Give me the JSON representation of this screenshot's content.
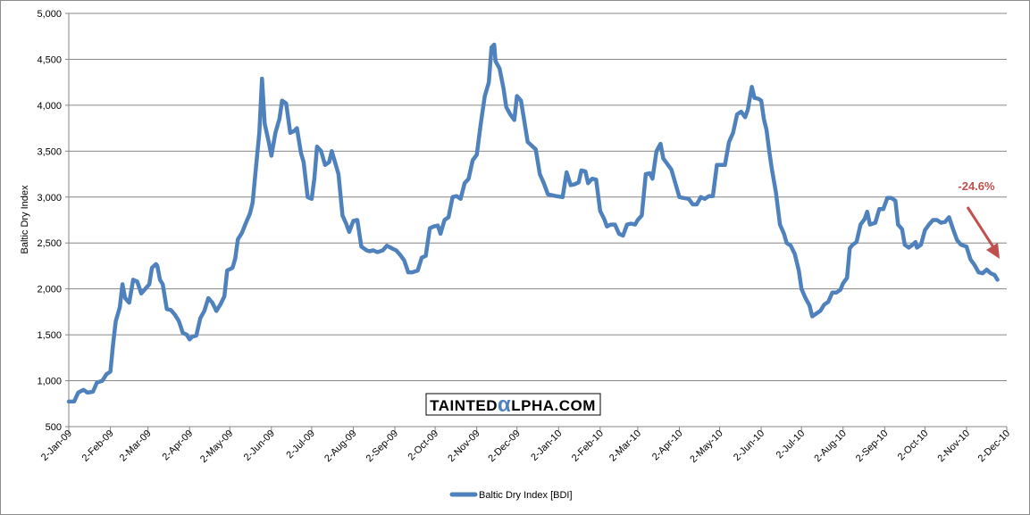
{
  "chart_data": {
    "type": "line",
    "title": "",
    "xlabel": "",
    "ylabel": "Baltic Dry Index",
    "ylim": [
      500,
      5000
    ],
    "yticks": [
      500,
      1000,
      1500,
      2000,
      2500,
      3000,
      3500,
      4000,
      4500,
      5000
    ],
    "ytick_labels": [
      "500",
      "1,000",
      "1,500",
      "2,000",
      "2,500",
      "3,000",
      "3,500",
      "4,000",
      "4,500",
      "5,000"
    ],
    "xtick_labels": [
      "2-Jan-09",
      "2-Feb-09",
      "2-Mar-09",
      "2-Apr-09",
      "2-May-09",
      "2-Jun-09",
      "2-Jul-09",
      "2-Aug-09",
      "2-Sep-09",
      "2-Oct-09",
      "2-Nov-09",
      "2-Dec-09",
      "2-Jan-10",
      "2-Feb-10",
      "2-Mar-10",
      "2-Apr-10",
      "2-May-10",
      "2-Jun-10",
      "2-Jul-10",
      "2-Aug-10",
      "2-Sep-10",
      "2-Oct-10",
      "2-Nov-10",
      "2-Dec-10"
    ],
    "grid": "horizontal",
    "legend": "bottom",
    "series": [
      {
        "name": "Baltic Dry Index [BDI]",
        "color": "#4f81bd",
        "points": [
          [
            "2-Jan-09",
            773
          ],
          [
            "6-Jan-09",
            774
          ],
          [
            "9-Jan-09",
            870
          ],
          [
            "13-Jan-09",
            900
          ],
          [
            "16-Jan-09",
            870
          ],
          [
            "20-Jan-09",
            880
          ],
          [
            "23-Jan-09",
            980
          ],
          [
            "27-Jan-09",
            1000
          ],
          [
            "30-Jan-09",
            1070
          ],
          [
            "2-Feb-09",
            1100
          ],
          [
            "4-Feb-09",
            1400
          ],
          [
            "6-Feb-09",
            1650
          ],
          [
            "9-Feb-09",
            1800
          ],
          [
            "11-Feb-09",
            2050
          ],
          [
            "13-Feb-09",
            1900
          ],
          [
            "16-Feb-09",
            1850
          ],
          [
            "19-Feb-09",
            2100
          ],
          [
            "22-Feb-09",
            2080
          ],
          [
            "25-Feb-09",
            1950
          ],
          [
            "28-Feb-09",
            2000
          ],
          [
            "3-Mar-09",
            2050
          ],
          [
            "5-Mar-09",
            2230
          ],
          [
            "8-Mar-09",
            2270
          ],
          [
            "9-Mar-09",
            2250
          ],
          [
            "11-Mar-09",
            2100
          ],
          [
            "13-Mar-09",
            2050
          ],
          [
            "16-Mar-09",
            1780
          ],
          [
            "19-Mar-09",
            1770
          ],
          [
            "22-Mar-09",
            1720
          ],
          [
            "25-Mar-09",
            1650
          ],
          [
            "28-Mar-09",
            1520
          ],
          [
            "31-Mar-09",
            1500
          ],
          [
            "2-Apr-09",
            1450
          ],
          [
            "4-Apr-09",
            1480
          ],
          [
            "7-Apr-09",
            1490
          ],
          [
            "10-Apr-09",
            1680
          ],
          [
            "13-Apr-09",
            1760
          ],
          [
            "16-Apr-09",
            1900
          ],
          [
            "19-Apr-09",
            1850
          ],
          [
            "22-Apr-09",
            1760
          ],
          [
            "25-Apr-09",
            1830
          ],
          [
            "28-Apr-09",
            1920
          ],
          [
            "30-Apr-09",
            2200
          ],
          [
            "4-May-09",
            2230
          ],
          [
            "6-May-09",
            2330
          ],
          [
            "8-May-09",
            2540
          ],
          [
            "11-May-09",
            2610
          ],
          [
            "14-May-09",
            2720
          ],
          [
            "17-May-09",
            2820
          ],
          [
            "19-May-09",
            2940
          ],
          [
            "22-May-09",
            3400
          ],
          [
            "24-May-09",
            3700
          ],
          [
            "26-May-09",
            4290
          ],
          [
            "28-May-09",
            3800
          ],
          [
            "31-May-09",
            3600
          ],
          [
            "2-Jun-09",
            3450
          ],
          [
            "5-Jun-09",
            3700
          ],
          [
            "8-Jun-09",
            3850
          ],
          [
            "10-Jun-09",
            4050
          ],
          [
            "13-Jun-09",
            4020
          ],
          [
            "16-Jun-09",
            3700
          ],
          [
            "19-Jun-09",
            3720
          ],
          [
            "21-Jun-09",
            3750
          ],
          [
            "24-Jun-09",
            3480
          ],
          [
            "26-Jun-09",
            3380
          ],
          [
            "29-Jun-09",
            3000
          ],
          [
            "2-Jul-09",
            2980
          ],
          [
            "4-Jul-09",
            3200
          ],
          [
            "6-Jul-09",
            3550
          ],
          [
            "9-Jul-09",
            3500
          ],
          [
            "12-Jul-09",
            3350
          ],
          [
            "15-Jul-09",
            3380
          ],
          [
            "17-Jul-09",
            3500
          ],
          [
            "20-Jul-09",
            3350
          ],
          [
            "22-Jul-09",
            3250
          ],
          [
            "25-Jul-09",
            2800
          ],
          [
            "28-Jul-09",
            2700
          ],
          [
            "30-Jul-09",
            2620
          ],
          [
            "2-Aug-09",
            2740
          ],
          [
            "5-Aug-09",
            2750
          ],
          [
            "8-Aug-09",
            2460
          ],
          [
            "12-Aug-09",
            2420
          ],
          [
            "14-Aug-09",
            2410
          ],
          [
            "17-Aug-09",
            2420
          ],
          [
            "20-Aug-09",
            2400
          ],
          [
            "24-Aug-09",
            2420
          ],
          [
            "27-Aug-09",
            2470
          ],
          [
            "31-Aug-09",
            2440
          ],
          [
            "3-Sep-09",
            2420
          ],
          [
            "6-Sep-09",
            2370
          ],
          [
            "9-Sep-09",
            2310
          ],
          [
            "12-Sep-09",
            2180
          ],
          [
            "15-Sep-09",
            2180
          ],
          [
            "19-Sep-09",
            2200
          ],
          [
            "22-Sep-09",
            2340
          ],
          [
            "25-Sep-09",
            2360
          ],
          [
            "28-Sep-09",
            2660
          ],
          [
            "1-Oct-09",
            2680
          ],
          [
            "4-Oct-09",
            2690
          ],
          [
            "6-Oct-09",
            2600
          ],
          [
            "9-Oct-09",
            2750
          ],
          [
            "12-Oct-09",
            2780
          ],
          [
            "15-Oct-09",
            3000
          ],
          [
            "18-Oct-09",
            3010
          ],
          [
            "21-Oct-09",
            2980
          ],
          [
            "24-Oct-09",
            3150
          ],
          [
            "27-Oct-09",
            3200
          ],
          [
            "30-Oct-09",
            3400
          ],
          [
            "2-Nov-09",
            3460
          ],
          [
            "5-Nov-09",
            3800
          ],
          [
            "8-Nov-09",
            4100
          ],
          [
            "11-Nov-09",
            4250
          ],
          [
            "13-Nov-09",
            4630
          ],
          [
            "15-Nov-09",
            4660
          ],
          [
            "16-Nov-09",
            4480
          ],
          [
            "19-Nov-09",
            4400
          ],
          [
            "22-Nov-09",
            4180
          ],
          [
            "24-Nov-09",
            3980
          ],
          [
            "27-Nov-09",
            3900
          ],
          [
            "30-Nov-09",
            3840
          ],
          [
            "2-Dec-09",
            4100
          ],
          [
            "5-Dec-09",
            4050
          ],
          [
            "8-Dec-09",
            3780
          ],
          [
            "10-Dec-09",
            3600
          ],
          [
            "13-Dec-09",
            3560
          ],
          [
            "16-Dec-09",
            3520
          ],
          [
            "19-Dec-09",
            3250
          ],
          [
            "22-Dec-09",
            3150
          ],
          [
            "25-Dec-09",
            3030
          ],
          [
            "31-Dec-09",
            3010
          ],
          [
            "5-Jan-10",
            3000
          ],
          [
            "8-Jan-10",
            3270
          ],
          [
            "11-Jan-10",
            3130
          ],
          [
            "14-Jan-10",
            3140
          ],
          [
            "17-Jan-10",
            3160
          ],
          [
            "19-Jan-10",
            3290
          ],
          [
            "22-Jan-10",
            3280
          ],
          [
            "24-Jan-10",
            3150
          ],
          [
            "27-Jan-10",
            3200
          ],
          [
            "30-Jan-10",
            3190
          ],
          [
            "2-Feb-10",
            2850
          ],
          [
            "5-Feb-10",
            2760
          ],
          [
            "7-Feb-10",
            2680
          ],
          [
            "10-Feb-10",
            2700
          ],
          [
            "13-Feb-10",
            2700
          ],
          [
            "16-Feb-10",
            2600
          ],
          [
            "19-Feb-10",
            2580
          ],
          [
            "22-Feb-10",
            2700
          ],
          [
            "25-Feb-10",
            2710
          ],
          [
            "28-Feb-10",
            2700
          ],
          [
            "2-Mar-10",
            2750
          ],
          [
            "5-Mar-10",
            2800
          ],
          [
            "8-Mar-10",
            3250
          ],
          [
            "11-Mar-10",
            3260
          ],
          [
            "13-Mar-10",
            3200
          ],
          [
            "16-Mar-10",
            3500
          ],
          [
            "19-Mar-10",
            3580
          ],
          [
            "21-Mar-10",
            3420
          ],
          [
            "24-Mar-10",
            3360
          ],
          [
            "27-Mar-10",
            3300
          ],
          [
            "30-Mar-10",
            3150
          ],
          [
            "2-Apr-10",
            3000
          ],
          [
            "5-Apr-10",
            2990
          ],
          [
            "9-Apr-10",
            2980
          ],
          [
            "12-Apr-10",
            2920
          ],
          [
            "15-Apr-10",
            2920
          ],
          [
            "18-Apr-10",
            3000
          ],
          [
            "21-Apr-10",
            2980
          ],
          [
            "24-Apr-10",
            3010
          ],
          [
            "27-Apr-10",
            3010
          ],
          [
            "30-Apr-10",
            3350
          ],
          [
            "3-May-10",
            3350
          ],
          [
            "6-May-10",
            3350
          ],
          [
            "9-May-10",
            3600
          ],
          [
            "12-May-10",
            3700
          ],
          [
            "15-May-10",
            3900
          ],
          [
            "18-May-10",
            3930
          ],
          [
            "21-May-10",
            3870
          ],
          [
            "23-May-10",
            3950
          ],
          [
            "26-May-10",
            4200
          ],
          [
            "28-May-10",
            4080
          ],
          [
            "31-May-10",
            4070
          ],
          [
            "2-Jun-10",
            4050
          ],
          [
            "4-Jun-10",
            3850
          ],
          [
            "6-Jun-10",
            3730
          ],
          [
            "8-Jun-10",
            3500
          ],
          [
            "10-Jun-10",
            3300
          ],
          [
            "13-Jun-10",
            3050
          ],
          [
            "16-Jun-10",
            2700
          ],
          [
            "19-Jun-10",
            2600
          ],
          [
            "21-Jun-10",
            2500
          ],
          [
            "24-Jun-10",
            2470
          ],
          [
            "27-Jun-10",
            2380
          ],
          [
            "30-Jun-10",
            2200
          ],
          [
            "2-Jul-10",
            2000
          ],
          [
            "5-Jul-10",
            1900
          ],
          [
            "8-Jul-10",
            1820
          ],
          [
            "10-Jul-10",
            1700
          ],
          [
            "13-Jul-10",
            1730
          ],
          [
            "16-Jul-10",
            1760
          ],
          [
            "19-Jul-10",
            1830
          ],
          [
            "22-Jul-10",
            1860
          ],
          [
            "25-Jul-10",
            1960
          ],
          [
            "28-Jul-10",
            1960
          ],
          [
            "31-Jul-10",
            1990
          ],
          [
            "2-Aug-10",
            2060
          ],
          [
            "5-Aug-10",
            2120
          ],
          [
            "7-Aug-10",
            2440
          ],
          [
            "9-Aug-10",
            2480
          ],
          [
            "12-Aug-10",
            2510
          ],
          [
            "15-Aug-10",
            2700
          ],
          [
            "18-Aug-10",
            2760
          ],
          [
            "20-Aug-10",
            2840
          ],
          [
            "22-Aug-10",
            2700
          ],
          [
            "26-Aug-10",
            2720
          ],
          [
            "29-Aug-10",
            2870
          ],
          [
            "1-Sep-10",
            2870
          ],
          [
            "4-Sep-10",
            2990
          ],
          [
            "7-Sep-10",
            2990
          ],
          [
            "10-Sep-10",
            2960
          ],
          [
            "12-Sep-10",
            2700
          ],
          [
            "15-Sep-10",
            2650
          ],
          [
            "17-Sep-10",
            2480
          ],
          [
            "20-Sep-10",
            2450
          ],
          [
            "22-Sep-10",
            2470
          ],
          [
            "25-Sep-10",
            2510
          ],
          [
            "26-Sep-10",
            2450
          ],
          [
            "29-Sep-10",
            2480
          ],
          [
            "2-Oct-10",
            2640
          ],
          [
            "5-Oct-10",
            2700
          ],
          [
            "8-Oct-10",
            2750
          ],
          [
            "11-Oct-10",
            2750
          ],
          [
            "14-Oct-10",
            2720
          ],
          [
            "17-Oct-10",
            2730
          ],
          [
            "20-Oct-10",
            2780
          ],
          [
            "23-Oct-10",
            2650
          ],
          [
            "26-Oct-10",
            2530
          ],
          [
            "29-Oct-10",
            2480
          ],
          [
            "2-Nov-10",
            2460
          ],
          [
            "5-Nov-10",
            2320
          ],
          [
            "8-Nov-10",
            2260
          ],
          [
            "11-Nov-10",
            2180
          ],
          [
            "14-Nov-10",
            2170
          ],
          [
            "17-Nov-10",
            2210
          ],
          [
            "20-Nov-10",
            2170
          ],
          [
            "23-Nov-10",
            2150
          ],
          [
            "25-Nov-10",
            2100
          ]
        ]
      }
    ],
    "annotations": [
      {
        "text": "-24.6%",
        "color": "#c0504d",
        "arrow": "down-right"
      }
    ]
  },
  "watermark": {
    "part1": "TAINTED",
    "symbol": "α",
    "part2": "LPHA.COM"
  }
}
